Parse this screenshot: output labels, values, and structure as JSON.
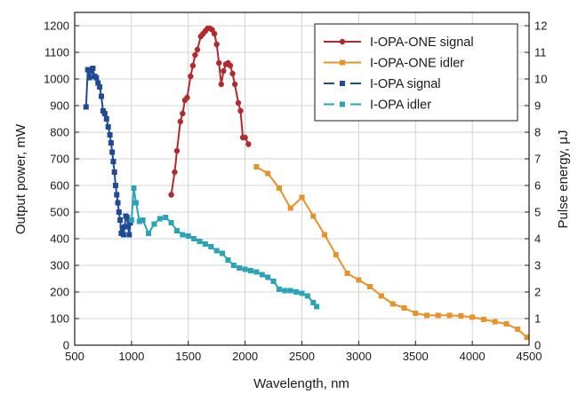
{
  "chart_data": {
    "type": "line",
    "title": "",
    "xlabel": "Wavelength, nm",
    "ylabel": "Output power, mW",
    "y2label": "Pulse energy, μJ",
    "xlim": [
      500,
      4500
    ],
    "ylim": [
      0,
      1250
    ],
    "y2lim": [
      0,
      12.5
    ],
    "x_ticks": [
      500,
      1000,
      1500,
      2000,
      2500,
      3000,
      3500,
      4000,
      4500
    ],
    "y_ticks": [
      0,
      100,
      200,
      300,
      400,
      500,
      600,
      700,
      800,
      900,
      1000,
      1100,
      1200
    ],
    "y2_ticks": [
      0,
      1,
      2,
      3,
      4,
      5,
      6,
      7,
      8,
      9,
      10,
      11,
      12
    ],
    "grid": true,
    "legend_position": "top-right",
    "series": [
      {
        "name": "I-OPA-ONE signal",
        "color": "#b22a2e",
        "marker": "circle",
        "points": [
          [
            1350,
            565
          ],
          [
            1380,
            650
          ],
          [
            1400,
            730
          ],
          [
            1430,
            840
          ],
          [
            1450,
            870
          ],
          [
            1470,
            920
          ],
          [
            1490,
            930
          ],
          [
            1520,
            1010
          ],
          [
            1540,
            1050
          ],
          [
            1560,
            1090
          ],
          [
            1580,
            1110
          ],
          [
            1610,
            1160
          ],
          [
            1630,
            1170
          ],
          [
            1650,
            1180
          ],
          [
            1670,
            1190
          ],
          [
            1690,
            1190
          ],
          [
            1710,
            1185
          ],
          [
            1730,
            1170
          ],
          [
            1750,
            1130
          ],
          [
            1770,
            1060
          ],
          [
            1790,
            980
          ],
          [
            1810,
            1030
          ],
          [
            1830,
            1055
          ],
          [
            1850,
            1060
          ],
          [
            1870,
            1050
          ],
          [
            1890,
            1020
          ],
          [
            1910,
            980
          ],
          [
            1940,
            910
          ],
          [
            1960,
            880
          ],
          [
            1980,
            780
          ],
          [
            2000,
            780
          ],
          [
            2030,
            755
          ]
        ]
      },
      {
        "name": "I-OPA-ONE idler",
        "color": "#e8922a",
        "marker": "square",
        "points": [
          [
            2100,
            670
          ],
          [
            2200,
            645
          ],
          [
            2300,
            590
          ],
          [
            2400,
            515
          ],
          [
            2500,
            555
          ],
          [
            2600,
            485
          ],
          [
            2700,
            415
          ],
          [
            2800,
            340
          ],
          [
            2900,
            270
          ],
          [
            3000,
            245
          ],
          [
            3100,
            220
          ],
          [
            3200,
            185
          ],
          [
            3300,
            155
          ],
          [
            3400,
            140
          ],
          [
            3500,
            120
          ],
          [
            3600,
            112
          ],
          [
            3700,
            112
          ],
          [
            3800,
            112
          ],
          [
            3900,
            110
          ],
          [
            4000,
            105
          ],
          [
            4100,
            97
          ],
          [
            4200,
            88
          ],
          [
            4300,
            80
          ],
          [
            4400,
            60
          ],
          [
            4480,
            30
          ]
        ]
      },
      {
        "name": "I-OPA signal",
        "color": "#1f4a96",
        "marker": "square",
        "points": [
          [
            600,
            895
          ],
          [
            615,
            1035
          ],
          [
            630,
            1005
          ],
          [
            645,
            1030
          ],
          [
            660,
            1040
          ],
          [
            675,
            1010
          ],
          [
            690,
            1005
          ],
          [
            705,
            985
          ],
          [
            720,
            970
          ],
          [
            735,
            935
          ],
          [
            750,
            880
          ],
          [
            765,
            870
          ],
          [
            780,
            850
          ],
          [
            795,
            820
          ],
          [
            810,
            790
          ],
          [
            820,
            760
          ],
          [
            830,
            725
          ],
          [
            840,
            690
          ],
          [
            850,
            650
          ],
          [
            860,
            600
          ],
          [
            870,
            565
          ],
          [
            880,
            535
          ],
          [
            890,
            500
          ],
          [
            900,
            470
          ],
          [
            910,
            420
          ],
          [
            920,
            440
          ],
          [
            930,
            415
          ],
          [
            940,
            445
          ],
          [
            950,
            485
          ],
          [
            960,
            480
          ],
          [
            970,
            445
          ],
          [
            980,
            415
          ],
          [
            990,
            460
          ]
        ]
      },
      {
        "name": "I-OPA idler",
        "color": "#2aa3b6",
        "marker": "square",
        "points": [
          [
            1000,
            470
          ],
          [
            1020,
            590
          ],
          [
            1040,
            535
          ],
          [
            1070,
            465
          ],
          [
            1100,
            470
          ],
          [
            1150,
            420
          ],
          [
            1200,
            455
          ],
          [
            1250,
            475
          ],
          [
            1300,
            480
          ],
          [
            1350,
            460
          ],
          [
            1400,
            430
          ],
          [
            1450,
            415
          ],
          [
            1500,
            410
          ],
          [
            1550,
            400
          ],
          [
            1600,
            390
          ],
          [
            1650,
            380
          ],
          [
            1700,
            370
          ],
          [
            1750,
            355
          ],
          [
            1800,
            345
          ],
          [
            1850,
            320
          ],
          [
            1900,
            300
          ],
          [
            1950,
            290
          ],
          [
            2000,
            285
          ],
          [
            2050,
            280
          ],
          [
            2100,
            275
          ],
          [
            2150,
            265
          ],
          [
            2200,
            255
          ],
          [
            2250,
            240
          ],
          [
            2300,
            210
          ],
          [
            2350,
            205
          ],
          [
            2400,
            205
          ],
          [
            2450,
            200
          ],
          [
            2500,
            195
          ],
          [
            2550,
            185
          ],
          [
            2600,
            160
          ],
          [
            2630,
            145
          ]
        ]
      }
    ]
  }
}
